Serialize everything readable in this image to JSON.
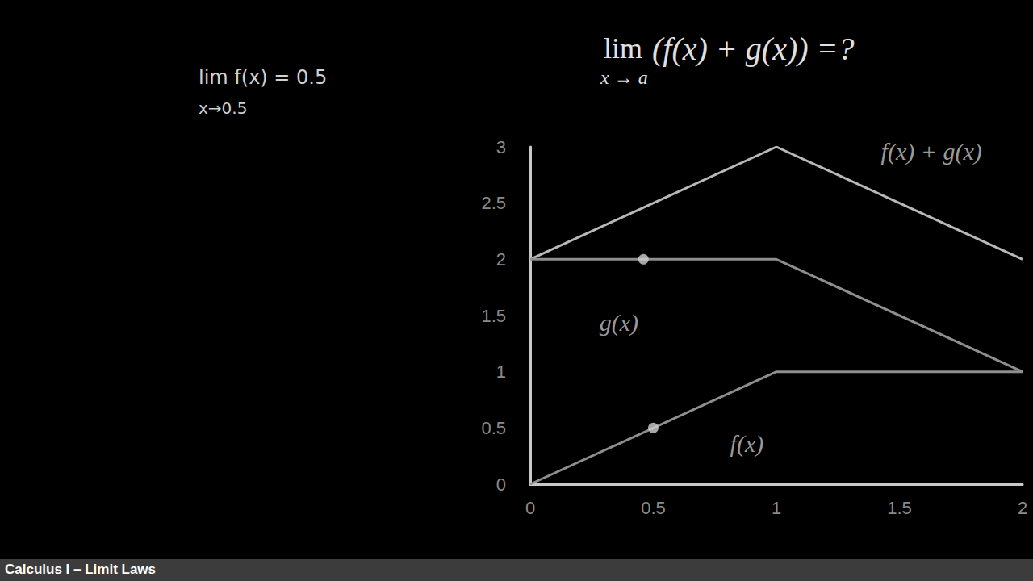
{
  "chart_data": {
    "type": "line",
    "title": {
      "operator": "lim",
      "subscript": "x → a",
      "body": "(f(x) + g(x)) =?"
    },
    "x": [
      0,
      1,
      2
    ],
    "series": [
      {
        "name": "f(x) + g(x)",
        "color": "#b8b8b8",
        "values": [
          2,
          3,
          2
        ],
        "label_at": [
          1.63,
          2.96
        ]
      },
      {
        "name": "g(x)",
        "color": "#8e8e8e",
        "values": [
          2,
          2,
          1
        ],
        "label_at": [
          0.36,
          1.44
        ]
      },
      {
        "name": "f(x)",
        "color": "#8e8e8e",
        "values": [
          0,
          1,
          1
        ],
        "label_at": [
          0.88,
          0.36
        ]
      }
    ],
    "points": {
      "color": "#cfcfcf",
      "x": [
        0.46,
        0.5
      ],
      "y": [
        2,
        0.5
      ]
    },
    "xlim": [
      0,
      2
    ],
    "ylim": [
      0,
      3
    ],
    "xticks": [
      0,
      0.5,
      1,
      1.5,
      2
    ],
    "yticks": [
      0,
      0.5,
      1,
      1.5,
      2,
      2.5,
      3
    ],
    "grid": false,
    "note": [
      "lim f(x) = 0.5",
      "x→0.5"
    ],
    "footer": "Calculus I – Limit Laws"
  }
}
